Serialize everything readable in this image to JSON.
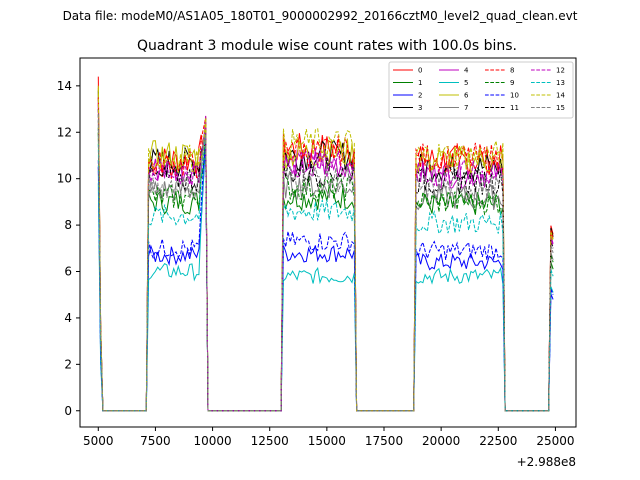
{
  "chart_data": {
    "type": "line",
    "suptitle": "Data file: modeM0/AS1A05_180T01_9000002992_20166cztM0_level2_quad_clean.evt",
    "title": "Quadrant 3 module wise count rates with 100.0s bins.",
    "xlabel": "",
    "ylabel": "",
    "x_offset_label": "+2.988e8",
    "xlim": [
      4200,
      25900
    ],
    "ylim": [
      -0.7,
      15.2
    ],
    "xticks": [
      5000,
      7500,
      10000,
      12500,
      15000,
      17500,
      20000,
      22500,
      25000
    ],
    "xtick_labels": [
      "5000",
      "7500",
      "10000",
      "12500",
      "15000",
      "17500",
      "20000",
      "22500",
      "25000"
    ],
    "yticks": [
      0,
      2,
      4,
      6,
      8,
      10,
      12,
      14
    ],
    "ytick_labels": [
      "0",
      "2",
      "4",
      "6",
      "8",
      "10",
      "12",
      "14"
    ],
    "grid": false,
    "legend_position": "top-right",
    "x_start": 5000,
    "bin_width": 100,
    "segments": [
      {
        "start": 7200,
        "end": 9700
      },
      {
        "start": 13100,
        "end": 16200
      },
      {
        "start": 18900,
        "end": 22700
      },
      {
        "start": 24800,
        "end": 24900
      }
    ],
    "series": [
      {
        "name": "0",
        "color": "#ff0000",
        "dash": "solid",
        "base": 10.8,
        "segment_means": [
          10.8,
          11.3,
          10.8,
          7.6
        ],
        "spike": 14.4
      },
      {
        "name": "1",
        "color": "#008000",
        "dash": "solid",
        "base": 9.0,
        "segment_means": [
          9.0,
          9.2,
          8.9,
          6.1
        ],
        "spike": 12.0
      },
      {
        "name": "2",
        "color": "#0000ff",
        "dash": "solid",
        "base": 6.7,
        "segment_means": [
          6.7,
          6.8,
          6.4,
          4.8
        ],
        "spike": 10.5
      },
      {
        "name": "3",
        "color": "#000000",
        "dash": "solid",
        "base": 10.7,
        "segment_means": [
          10.7,
          11.0,
          10.5,
          7.5
        ],
        "spike": 13.8
      },
      {
        "name": "4",
        "color": "#bf00bf",
        "dash": "solid",
        "base": 10.4,
        "segment_means": [
          10.4,
          10.6,
          10.2,
          7.2
        ],
        "spike": 13.5
      },
      {
        "name": "5",
        "color": "#00bfbf",
        "dash": "solid",
        "base": 6.0,
        "segment_means": [
          6.0,
          5.8,
          5.8,
          5.1
        ],
        "spike": 9.8
      },
      {
        "name": "6",
        "color": "#bfbf00",
        "dash": "solid",
        "base": 11.0,
        "segment_means": [
          11.0,
          11.1,
          10.8,
          7.4
        ],
        "spike": 14.0
      },
      {
        "name": "7",
        "color": "#808080",
        "dash": "solid",
        "base": 9.5,
        "segment_means": [
          9.5,
          9.7,
          9.2,
          6.5
        ],
        "spike": 12.5
      },
      {
        "name": "8",
        "color": "#ff0000",
        "dash": "dashed",
        "base": 10.6,
        "segment_means": [
          10.6,
          11.2,
          10.9,
          7.4
        ],
        "spike": 13.5
      },
      {
        "name": "9",
        "color": "#008000",
        "dash": "dashed",
        "base": 9.2,
        "segment_means": [
          9.2,
          9.6,
          9.0,
          6.4
        ],
        "spike": 12.2
      },
      {
        "name": "10",
        "color": "#0000ff",
        "dash": "dashed",
        "base": 7.0,
        "segment_means": [
          7.0,
          7.3,
          6.9,
          5.0
        ],
        "spike": 10.8
      },
      {
        "name": "11",
        "color": "#000000",
        "dash": "dashed",
        "base": 10.0,
        "segment_means": [
          10.0,
          10.3,
          9.9,
          7.0
        ],
        "spike": 13.0
      },
      {
        "name": "12",
        "color": "#bf00bf",
        "dash": "dashed",
        "base": 10.3,
        "segment_means": [
          10.3,
          10.7,
          10.2,
          7.1
        ],
        "spike": 13.2
      },
      {
        "name": "13",
        "color": "#00bfbf",
        "dash": "dashed",
        "base": 8.4,
        "segment_means": [
          8.4,
          8.6,
          8.1,
          5.8
        ],
        "spike": 11.5
      },
      {
        "name": "14",
        "color": "#bfbf00",
        "dash": "dashed",
        "base": 10.9,
        "segment_means": [
          10.9,
          11.5,
          11.0,
          7.3
        ],
        "spike": 13.9
      },
      {
        "name": "15",
        "color": "#808080",
        "dash": "dashed",
        "base": 9.7,
        "segment_means": [
          9.7,
          10.0,
          9.6,
          6.8
        ],
        "spike": 12.8
      }
    ]
  }
}
